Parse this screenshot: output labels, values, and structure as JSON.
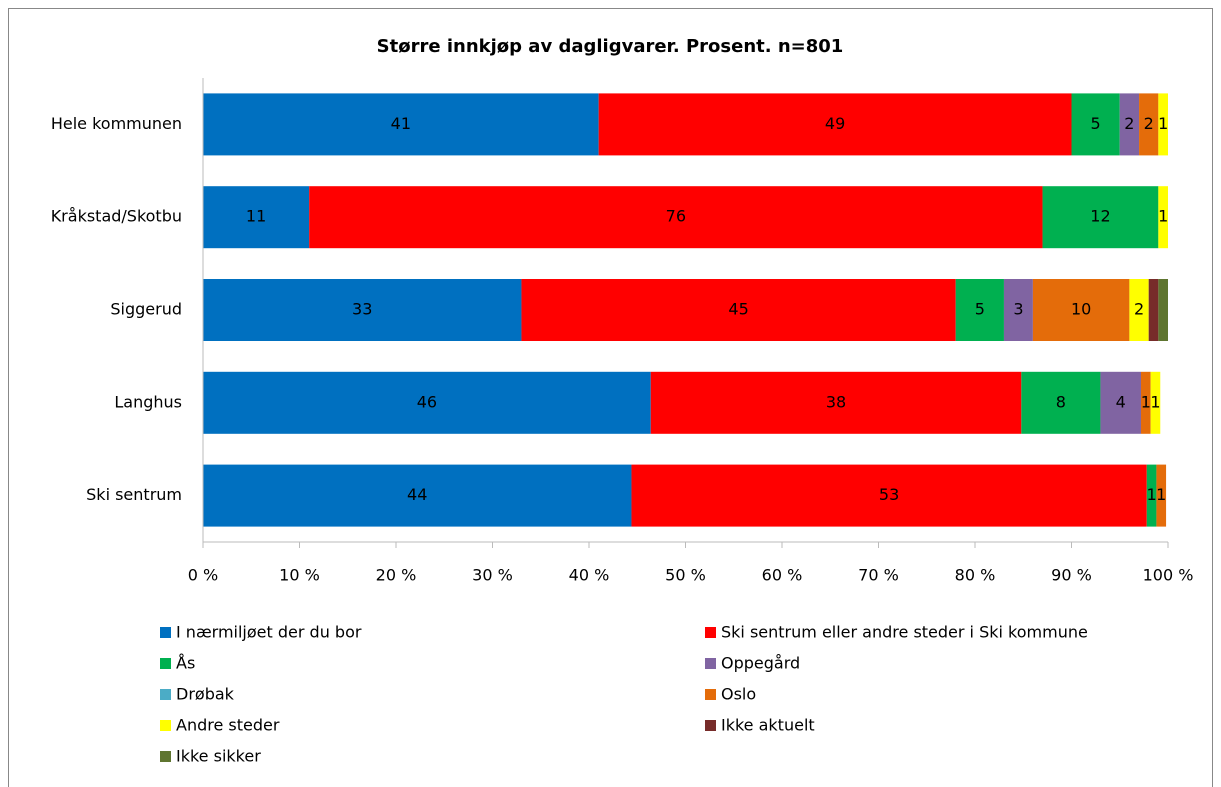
{
  "chart_data": {
    "type": "stacked-bar-horizontal",
    "title": "Større innkjøp av dagligvarer. Prosent. n=801",
    "categories": [
      "Hele kommunen",
      "Kråkstad/Skotbu",
      "Siggerud",
      "Langhus",
      "Ski sentrum"
    ],
    "series": [
      {
        "name": "I nærmiljøet der du bor",
        "color": "#0070c0",
        "values": [
          41,
          11,
          33,
          46.4,
          44.4
        ],
        "value_labels": [
          "41",
          "11",
          "33",
          "46",
          "44"
        ]
      },
      {
        "name": "Ski sentrum eller andre steder i Ski kommune",
        "color": "#ff0000",
        "values": [
          49,
          76,
          45,
          38.4,
          53.4
        ],
        "value_labels": [
          "49",
          "76",
          "45",
          "38",
          "53"
        ]
      },
      {
        "name": "Ås",
        "color": "#00b050",
        "values": [
          5,
          12,
          5,
          8.2,
          1
        ],
        "value_labels": [
          "5",
          "12",
          "5",
          "8",
          "1"
        ]
      },
      {
        "name": "Oppegård",
        "color": "#8064a2",
        "values": [
          2,
          0,
          3,
          4.2,
          0
        ],
        "value_labels": [
          "2",
          null,
          "3",
          "4",
          null
        ]
      },
      {
        "name": "Drøbak",
        "color": "#4bacc6",
        "values": [
          0,
          0,
          0,
          0,
          0
        ],
        "value_labels": [
          null,
          null,
          null,
          null,
          null
        ]
      },
      {
        "name": "Oslo",
        "color": "#e46c0a",
        "values": [
          2,
          0,
          10,
          1,
          1
        ],
        "value_labels": [
          "2",
          null,
          "10",
          "1",
          "1"
        ]
      },
      {
        "name": "Andre steder",
        "color": "#ffff00",
        "values": [
          1,
          1,
          2,
          1,
          0
        ],
        "value_labels": [
          "1",
          "1",
          "2",
          "1",
          null
        ]
      },
      {
        "name": "Ikke aktuelt",
        "color": "#772c2a",
        "values": [
          0,
          0,
          1,
          0,
          0
        ],
        "value_labels": [
          null,
          null,
          null,
          null,
          null
        ]
      },
      {
        "name": "Ikke sikker",
        "color": "#5f7530",
        "values": [
          0,
          0,
          1,
          0,
          0
        ],
        "value_labels": [
          null,
          null,
          null,
          null,
          null
        ]
      }
    ],
    "xlim": [
      0,
      100
    ],
    "xticks": [
      {
        "value": 0,
        "label": "0 %"
      },
      {
        "value": 10,
        "label": "10 %"
      },
      {
        "value": 20,
        "label": "20 %"
      },
      {
        "value": 30,
        "label": "30 %"
      },
      {
        "value": 40,
        "label": "40 %"
      },
      {
        "value": 50,
        "label": "50 %"
      },
      {
        "value": 60,
        "label": "60 %"
      },
      {
        "value": 70,
        "label": "70 %"
      },
      {
        "value": 80,
        "label": "80 %"
      },
      {
        "value": 90,
        "label": "90 %"
      },
      {
        "value": 100,
        "label": "100 %"
      }
    ],
    "grid": false,
    "legend": "bottom"
  }
}
